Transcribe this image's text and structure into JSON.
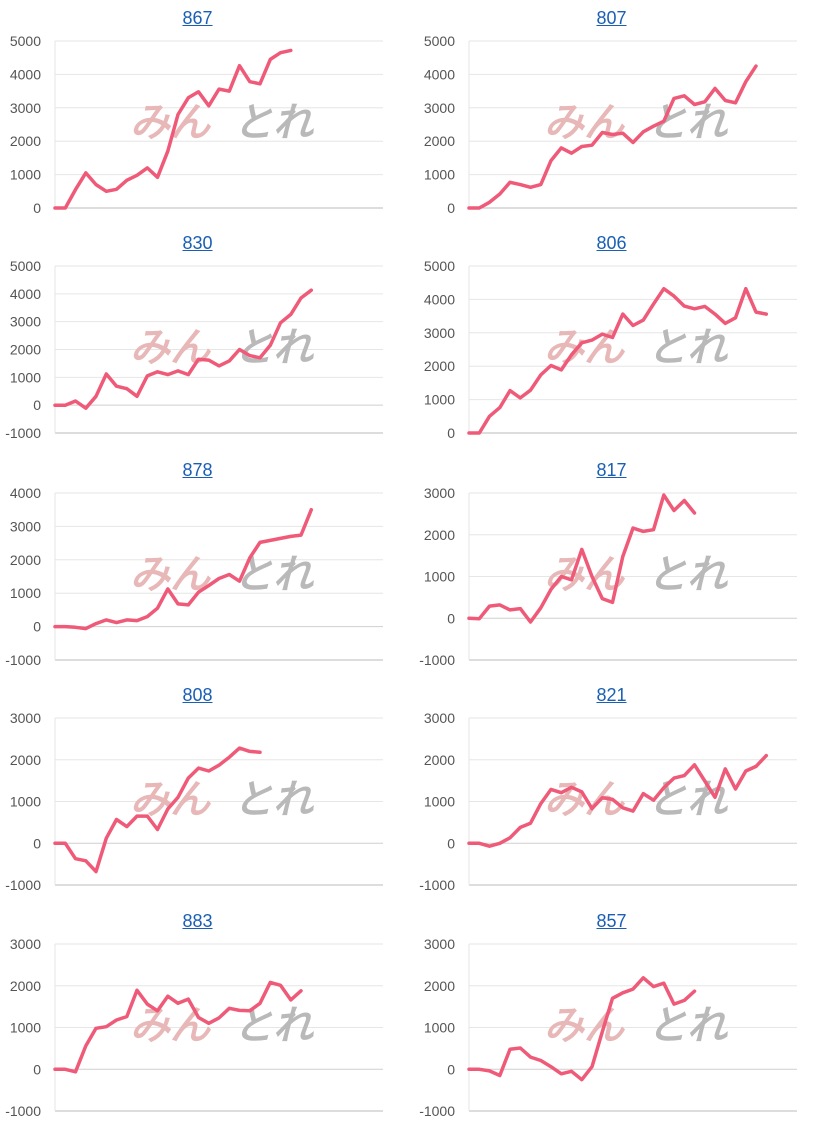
{
  "colors": {
    "line": "#ef5a78",
    "grid": "#e6e6e6",
    "axis": "#bbbbbb",
    "title_link": "#1a5fb4",
    "watermark_pink": "#e8b7b7",
    "watermark_gray": "#b9b9b9"
  },
  "watermark": {
    "left_text": "みん",
    "right_text": "とれ"
  },
  "chart_data": [
    {
      "type": "line",
      "title": "867",
      "ylim": [
        0,
        5000
      ],
      "yticks": [
        0,
        1000,
        2000,
        3000,
        4000,
        5000
      ],
      "grid": true,
      "x_count": 33,
      "series": [
        {
          "values": [
            0,
            0,
            550,
            1050,
            700,
            500,
            560,
            830,
            980,
            1200,
            920,
            1700,
            2800,
            3300,
            3480,
            3060,
            3560,
            3500,
            4260,
            3780,
            3720,
            4450,
            4650,
            4720
          ]
        }
      ]
    },
    {
      "type": "line",
      "title": "807",
      "ylim": [
        0,
        5000
      ],
      "yticks": [
        0,
        1000,
        2000,
        3000,
        4000,
        5000
      ],
      "grid": true,
      "x_count": 33,
      "series": [
        {
          "values": [
            0,
            0,
            170,
            420,
            770,
            700,
            620,
            700,
            1420,
            1800,
            1640,
            1840,
            1880,
            2260,
            2200,
            2240,
            1960,
            2280,
            2450,
            2600,
            3280,
            3360,
            3100,
            3180,
            3580,
            3220,
            3150,
            3780,
            4250
          ]
        }
      ]
    },
    {
      "type": "line",
      "title": "830",
      "ylim": [
        -1000,
        5000
      ],
      "yticks": [
        -1000,
        0,
        1000,
        2000,
        3000,
        4000,
        5000
      ],
      "grid": true,
      "x_count": 33,
      "series": [
        {
          "values": [
            0,
            0,
            150,
            -110,
            320,
            1120,
            680,
            590,
            320,
            1050,
            1200,
            1100,
            1230,
            1100,
            1650,
            1620,
            1410,
            1590,
            2000,
            1780,
            1700,
            2150,
            2960,
            3260,
            3850,
            4130
          ]
        }
      ]
    },
    {
      "type": "line",
      "title": "806",
      "ylim": [
        0,
        5000
      ],
      "yticks": [
        0,
        1000,
        2000,
        3000,
        4000,
        5000
      ],
      "grid": true,
      "x_count": 33,
      "series": [
        {
          "values": [
            0,
            0,
            500,
            760,
            1270,
            1050,
            1280,
            1740,
            2020,
            1890,
            2340,
            2700,
            2780,
            2960,
            2860,
            3560,
            3220,
            3380,
            3860,
            4320,
            4100,
            3800,
            3720,
            3790,
            3560,
            3280,
            3450,
            4320,
            3620,
            3560
          ]
        }
      ]
    },
    {
      "type": "line",
      "title": "878",
      "ylim": [
        -1000,
        4000
      ],
      "yticks": [
        -1000,
        0,
        1000,
        2000,
        3000,
        4000
      ],
      "grid": true,
      "x_count": 33,
      "series": [
        {
          "values": [
            0,
            0,
            -20,
            -60,
            90,
            200,
            120,
            200,
            180,
            300,
            550,
            1130,
            680,
            650,
            1030,
            1230,
            1440,
            1560,
            1360,
            2060,
            2520,
            2580,
            2640,
            2700,
            2740,
            3500
          ]
        }
      ]
    },
    {
      "type": "line",
      "title": "817",
      "ylim": [
        -1000,
        3000
      ],
      "yticks": [
        -1000,
        0,
        1000,
        2000,
        3000
      ],
      "grid": true,
      "x_count": 33,
      "series": [
        {
          "values": [
            0,
            -10,
            290,
            320,
            200,
            230,
            -90,
            250,
            690,
            1000,
            920,
            1650,
            1000,
            470,
            380,
            1480,
            2160,
            2080,
            2120,
            2950,
            2580,
            2820,
            2520
          ]
        }
      ]
    },
    {
      "type": "line",
      "title": "808",
      "ylim": [
        -1000,
        3000
      ],
      "yticks": [
        -1000,
        0,
        1000,
        2000,
        3000
      ],
      "grid": true,
      "x_count": 33,
      "series": [
        {
          "values": [
            0,
            0,
            -370,
            -420,
            -680,
            120,
            570,
            400,
            650,
            650,
            330,
            820,
            1100,
            1560,
            1800,
            1730,
            1870,
            2060,
            2280,
            2200,
            2180
          ]
        }
      ]
    },
    {
      "type": "line",
      "title": "821",
      "ylim": [
        -1000,
        3000
      ],
      "yticks": [
        -1000,
        0,
        1000,
        2000,
        3000
      ],
      "grid": true,
      "x_count": 33,
      "series": [
        {
          "values": [
            0,
            0,
            -70,
            0,
            130,
            380,
            480,
            950,
            1290,
            1210,
            1340,
            1230,
            830,
            1090,
            1050,
            850,
            770,
            1190,
            1030,
            1330,
            1560,
            1620,
            1880,
            1490,
            1100,
            1780,
            1300,
            1730,
            1840,
            2100
          ]
        }
      ]
    },
    {
      "type": "line",
      "title": "883",
      "ylim": [
        -1000,
        3000
      ],
      "yticks": [
        -1000,
        0,
        1000,
        2000,
        3000
      ],
      "grid": true,
      "x_count": 33,
      "series": [
        {
          "values": [
            0,
            0,
            -60,
            560,
            980,
            1020,
            1180,
            1260,
            1890,
            1560,
            1400,
            1750,
            1580,
            1680,
            1240,
            1100,
            1230,
            1460,
            1410,
            1400,
            1580,
            2080,
            2010,
            1660,
            1880
          ]
        }
      ]
    },
    {
      "type": "line",
      "title": "857",
      "ylim": [
        -1000,
        3000
      ],
      "yticks": [
        -1000,
        0,
        1000,
        2000,
        3000
      ],
      "grid": true,
      "x_count": 33,
      "series": [
        {
          "values": [
            0,
            0,
            -40,
            -150,
            480,
            510,
            290,
            210,
            60,
            -110,
            -50,
            -250,
            60,
            900,
            1700,
            1830,
            1920,
            2190,
            1980,
            2060,
            1560,
            1650,
            1870
          ]
        }
      ]
    }
  ]
}
